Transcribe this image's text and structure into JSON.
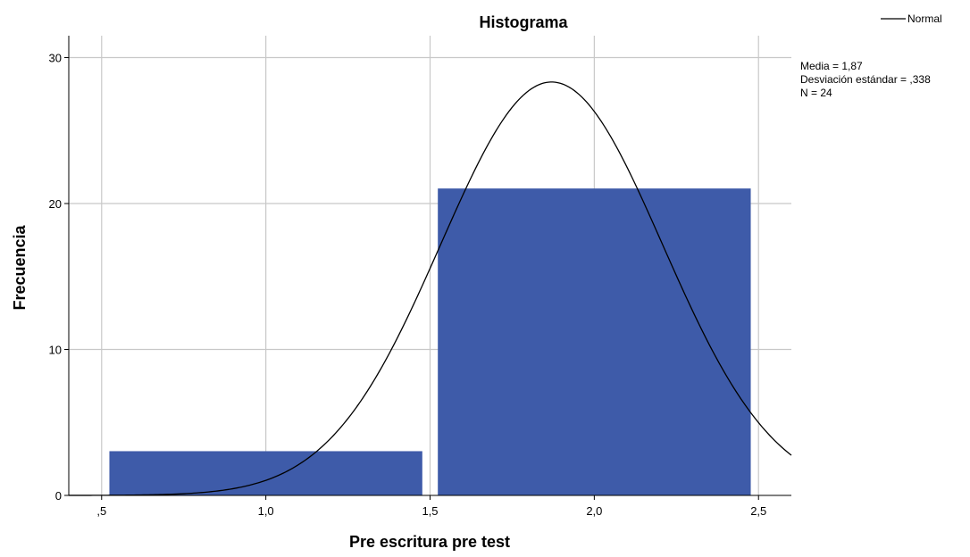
{
  "chart_data": {
    "type": "bar",
    "title": "Histograma",
    "xlabel": "Pre escritura pre test",
    "ylabel": "Frecuencia",
    "xlim": [
      0.4,
      2.6
    ],
    "ylim": [
      0,
      31.5
    ],
    "x_ticks": [
      0.5,
      1.0,
      1.5,
      2.0,
      2.5
    ],
    "x_tick_labels": [
      ",5",
      "1,0",
      "1,5",
      "2,0",
      "2,5"
    ],
    "y_ticks": [
      0,
      10,
      20,
      30
    ],
    "y_tick_labels": [
      "0",
      "10",
      "20",
      "30"
    ],
    "grid": true,
    "bins": [
      {
        "from": 0.5,
        "to": 1.5,
        "count": 3
      },
      {
        "from": 1.5,
        "to": 2.5,
        "count": 21
      }
    ],
    "bar_color": "#3e5ba9",
    "normal_curve": {
      "name": "Normal",
      "mean": 1.87,
      "sd": 0.338,
      "n": 24,
      "bin_width": 1.0,
      "color": "#000000"
    },
    "legend_position": "top-right",
    "stats": [
      "Media = 1,87",
      "Desviación estándar = ,338",
      "N = 24"
    ]
  }
}
